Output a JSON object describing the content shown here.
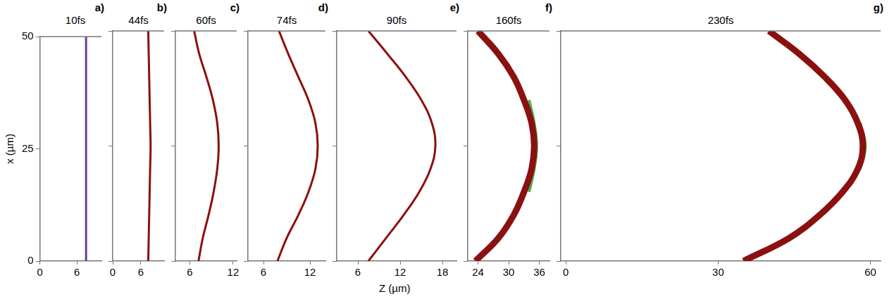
{
  "chart_data": [
    {
      "type": "line",
      "panel_label": "a)",
      "title": "10fs",
      "y_label": "x (µm)",
      "xlim": [
        0,
        10
      ],
      "xticks": [
        0,
        6
      ],
      "ylim": [
        0,
        50
      ],
      "yticks": [
        0,
        25,
        50
      ],
      "series": [
        {
          "color": "#6a3d9a",
          "x": [
            7.5,
            7.5,
            7.5,
            7.5,
            7.5,
            7.5,
            7.5,
            7.5,
            7.5,
            7.5,
            7.5
          ],
          "values": [
            0,
            5,
            10,
            15,
            20,
            25,
            30,
            35,
            40,
            45,
            50
          ]
        }
      ]
    },
    {
      "type": "line",
      "panel_label": "b)",
      "title": "44fs",
      "tick_labels": "x",
      "xlim": [
        0,
        11
      ],
      "xticks": [
        0,
        6
      ],
      "ylim": [
        0,
        50
      ],
      "yticks": [
        0,
        25,
        50
      ],
      "series": [
        {
          "color": "#8b1010",
          "x": [
            7.6,
            7.7,
            7.8,
            7.9,
            8.0,
            8.1,
            8.0,
            7.9,
            7.8,
            7.7,
            7.6
          ],
          "values": [
            0,
            5,
            10,
            15,
            20,
            25,
            30,
            35,
            40,
            45,
            50
          ]
        }
      ]
    },
    {
      "type": "line",
      "panel_label": "c)",
      "title": "60fs",
      "tick_labels": "x",
      "xlim": [
        4,
        12.5
      ],
      "xticks": [
        6,
        12
      ],
      "ylim": [
        0,
        50
      ],
      "yticks": [
        0,
        25,
        50
      ],
      "series": [
        {
          "color": "#8b1010",
          "x": [
            7.2,
            7.8,
            8.6,
            9.3,
            9.8,
            10.0,
            9.8,
            9.2,
            8.3,
            7.3,
            6.6
          ],
          "values": [
            0,
            5,
            10,
            15,
            20,
            25,
            30,
            35,
            40,
            45,
            50
          ]
        }
      ]
    },
    {
      "type": "line",
      "panel_label": "d)",
      "title": "74fs",
      "tick_labels": "x",
      "xlim": [
        4,
        14
      ],
      "xticks": [
        6,
        12
      ],
      "ylim": [
        0,
        50
      ],
      "yticks": [
        0,
        25,
        50
      ],
      "series": [
        {
          "color": "#8b1010",
          "x": [
            7.8,
            9.0,
            10.5,
            11.8,
            12.7,
            13.0,
            12.7,
            11.8,
            10.5,
            9.2,
            8.0
          ],
          "values": [
            0,
            5,
            10,
            15,
            20,
            25,
            30,
            35,
            40,
            45,
            50
          ]
        }
      ]
    },
    {
      "type": "line",
      "panel_label": "e)",
      "title": "90fs",
      "tick_labels": "x",
      "x_label": "Z (µm)",
      "xlim": [
        3,
        20
      ],
      "xticks": [
        6,
        12,
        18
      ],
      "ylim": [
        0,
        50
      ],
      "yticks": [
        0,
        25,
        50
      ],
      "series": [
        {
          "color": "#8b1010",
          "x": [
            7.5,
            10.0,
            12.5,
            14.7,
            16.3,
            17.0,
            16.5,
            15.0,
            12.8,
            10.2,
            7.5
          ],
          "values": [
            0,
            5,
            10,
            15,
            20,
            25,
            30,
            35,
            40,
            45,
            50
          ]
        }
      ]
    },
    {
      "type": "line",
      "panel_label": "f)",
      "title": "160fs",
      "tick_labels": "x",
      "xlim": [
        22,
        38
      ],
      "xticks": [
        24,
        30,
        36
      ],
      "ylim": [
        0,
        50
      ],
      "yticks": [
        0,
        25,
        50
      ],
      "series": [
        {
          "color": "#8b1010",
          "x": [
            23.5,
            28,
            31,
            33,
            34.5,
            35,
            34.5,
            33,
            31,
            28,
            24
          ],
          "values": [
            0,
            5,
            10,
            15,
            20,
            25,
            30,
            35,
            40,
            45,
            50
          ]
        },
        {
          "color": "#4caf50",
          "x": [
            34,
            35,
            35.5,
            35,
            34
          ],
          "values": [
            15,
            20,
            25,
            30,
            35
          ]
        }
      ]
    },
    {
      "type": "line",
      "panel_label": "g)",
      "title": "230fs",
      "tick_labels": "x",
      "xlim": [
        -1,
        62
      ],
      "xticks": [
        0,
        30,
        60
      ],
      "ylim": [
        0,
        50
      ],
      "yticks": [
        0,
        25,
        50
      ],
      "series": [
        {
          "color": "#8b1010",
          "x": [
            35,
            44,
            50,
            54.5,
            57.5,
            58.5,
            57.5,
            55,
            51,
            46,
            40
          ],
          "values": [
            0,
            5,
            10,
            15,
            20,
            25,
            30,
            35,
            40,
            45,
            50
          ]
        },
        {
          "color": "#4caf50",
          "x": [
            58,
            59,
            58
          ],
          "values": [
            20,
            25,
            30
          ]
        }
      ]
    }
  ]
}
